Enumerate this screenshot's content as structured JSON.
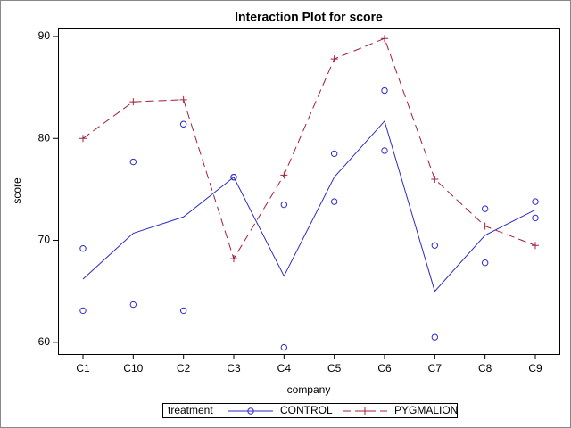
{
  "chart_data": {
    "type": "interaction",
    "title": "Interaction Plot for score",
    "x_label": "company",
    "y_label": "score",
    "legend_title": "treatment",
    "categories": [
      "C1",
      "C10",
      "C2",
      "C3",
      "C4",
      "C5",
      "C6",
      "C7",
      "C8",
      "C9"
    ],
    "series": [
      {
        "name": "CONTROL",
        "color": "#2b2bc8",
        "marker": "circle",
        "line": "solid",
        "values": [
          66.2,
          70.7,
          72.3,
          76.2,
          66.5,
          76.2,
          81.7,
          65.0,
          70.5,
          73.0
        ],
        "observations": [
          [
            69.2,
            63.1
          ],
          [
            77.7,
            63.7
          ],
          [
            81.4,
            63.1
          ],
          [
            76.2,
            76.2
          ],
          [
            73.5,
            59.5
          ],
          [
            78.5,
            73.8
          ],
          [
            84.7,
            78.8
          ],
          [
            69.5,
            60.5
          ],
          [
            73.1,
            67.8
          ],
          [
            73.8,
            72.2
          ]
        ]
      },
      {
        "name": "PYGMALION",
        "color": "#a3203a",
        "marker": "plus",
        "line": "dashed",
        "values": [
          80.0,
          83.6,
          83.8,
          68.2,
          76.4,
          87.8,
          89.8,
          76.0,
          71.4,
          69.5
        ]
      }
    ],
    "ylim": [
      58.85,
      90.87
    ],
    "yticks": [
      60,
      70,
      80,
      90
    ],
    "grid": false
  }
}
